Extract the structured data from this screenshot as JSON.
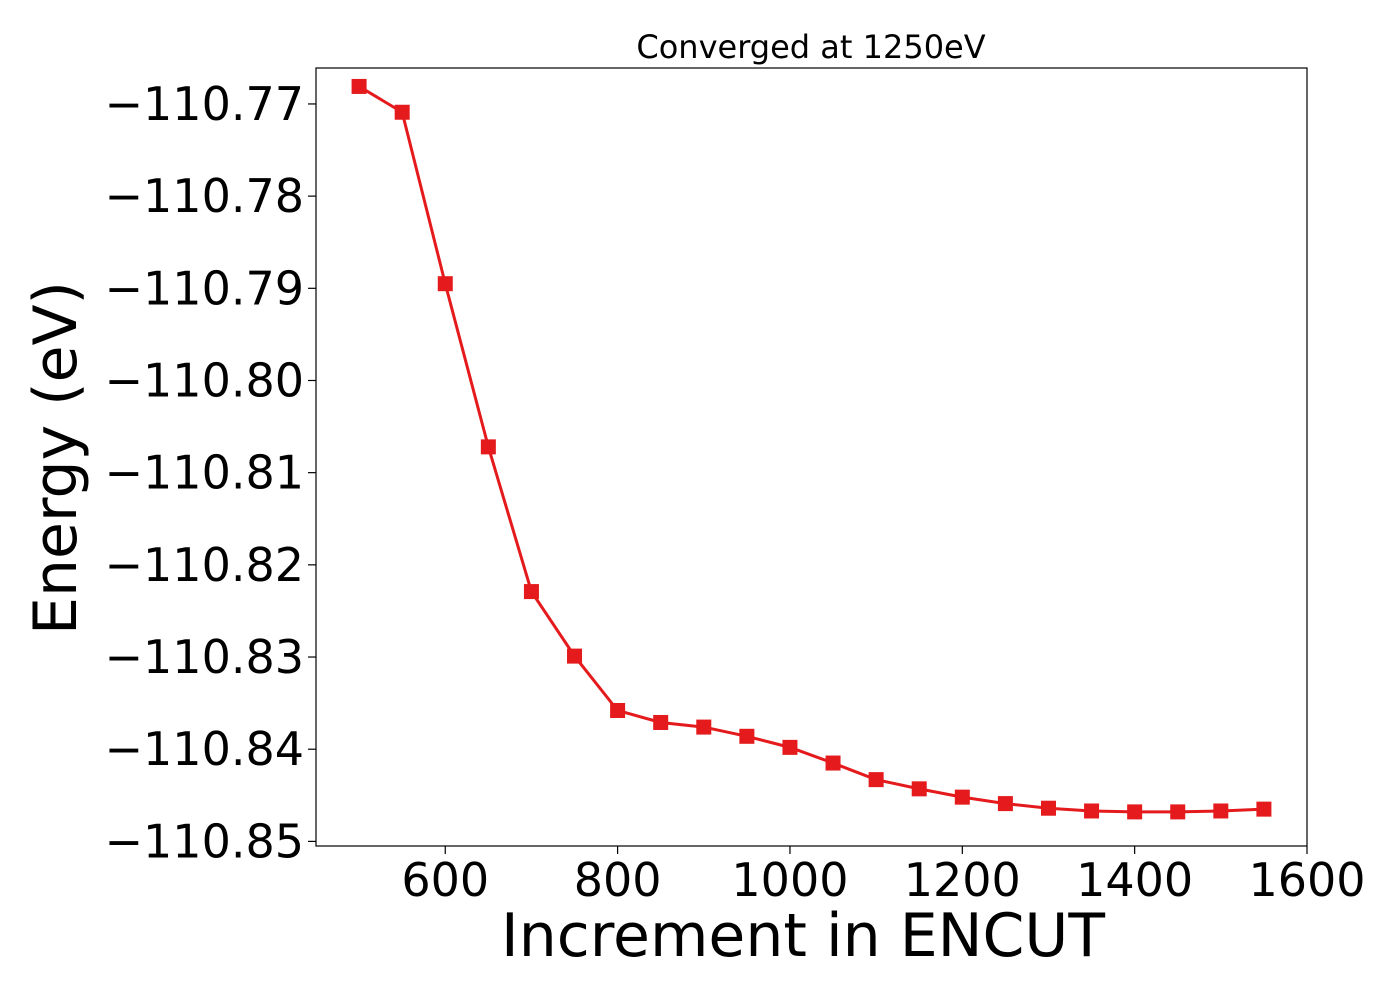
{
  "chart_data": {
    "type": "line",
    "title": "Converged at 1250eV",
    "xlabel": "Increment in ENCUT",
    "ylabel": "Energy (eV)",
    "xlim": [
      450,
      1600
    ],
    "ylim": [
      -110.8505,
      -110.7661
    ],
    "x_ticks": [
      600,
      800,
      1000,
      1200,
      1400,
      1600
    ],
    "x_tick_labels": [
      "600",
      "800",
      "1000",
      "1200",
      "1400",
      "1600"
    ],
    "y_ticks": [
      -110.77,
      -110.78,
      -110.79,
      -110.8,
      -110.81,
      -110.82,
      -110.83,
      -110.84,
      -110.85
    ],
    "y_tick_labels": [
      "−110.77",
      "−110.78",
      "−110.79",
      "−110.80",
      "−110.81",
      "−110.82",
      "−110.83",
      "−110.84",
      "−110.85"
    ],
    "grid": false,
    "series": [
      {
        "color": "#e41a1c",
        "marker": "square",
        "x": [
          500,
          550,
          600,
          650,
          700,
          750,
          800,
          850,
          900,
          950,
          1000,
          1050,
          1100,
          1150,
          1200,
          1250,
          1300,
          1350,
          1400,
          1450,
          1500,
          1550
        ],
        "y": [
          -110.7681,
          -110.7709,
          -110.7895,
          -110.8072,
          -110.8229,
          -110.8299,
          -110.8358,
          -110.8371,
          -110.8376,
          -110.8386,
          -110.8398,
          -110.8415,
          -110.8433,
          -110.8443,
          -110.8452,
          -110.8459,
          -110.8464,
          -110.8467,
          -110.8468,
          -110.8468,
          -110.8467,
          -110.8465
        ]
      }
    ]
  }
}
